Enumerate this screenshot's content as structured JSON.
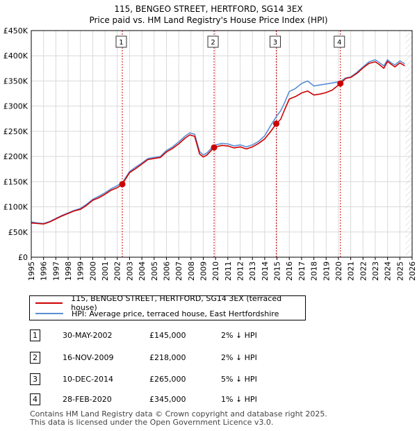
{
  "chart_data": {
    "type": "line",
    "title": "115, BENGEO STREET, HERTFORD, SG14 3EX",
    "subtitle": "Price paid vs. HM Land Registry's House Price Index (HPI)",
    "xlim": [
      1995,
      2026
    ],
    "ylim": [
      0,
      450000
    ],
    "x_tick_labels": [
      "1995",
      "1996",
      "1997",
      "1998",
      "1999",
      "2000",
      "2001",
      "2002",
      "2003",
      "2004",
      "2005",
      "2006",
      "2007",
      "2008",
      "2009",
      "2010",
      "2011",
      "2012",
      "2013",
      "2014",
      "2015",
      "2016",
      "2017",
      "2018",
      "2019",
      "2020",
      "2021",
      "2022",
      "2023",
      "2024",
      "2025",
      "2026"
    ],
    "y_ticks": [
      0,
      50000,
      100000,
      150000,
      200000,
      250000,
      300000,
      350000,
      400000,
      450000
    ],
    "y_tick_labels": [
      "£0",
      "£50K",
      "£100K",
      "£150K",
      "£200K",
      "£250K",
      "£300K",
      "£350K",
      "£400K",
      "£450K"
    ],
    "grid": true,
    "series": [
      {
        "name": "115, BENGEO STREET, HERTFORD, SG14 3EX (terraced house)",
        "color": "#cc0000",
        "x": [
          1995.0,
          1995.5,
          1996.0,
          1996.5,
          1997.0,
          1997.5,
          1998.0,
          1998.5,
          1999.0,
          1999.5,
          2000.0,
          2000.5,
          2001.0,
          2001.5,
          2002.0,
          2002.41,
          2003.0,
          2003.5,
          2004.0,
          2004.5,
          2005.0,
          2005.5,
          2006.0,
          2006.5,
          2007.0,
          2007.5,
          2007.9,
          2008.3,
          2008.7,
          2009.0,
          2009.3,
          2009.88,
          2010.5,
          2011.0,
          2011.5,
          2012.0,
          2012.5,
          2013.0,
          2013.5,
          2014.0,
          2014.5,
          2014.94,
          2015.3,
          2015.6,
          2016.0,
          2016.5,
          2017.0,
          2017.5,
          2018.0,
          2018.5,
          2019.0,
          2019.5,
          2020.16,
          2020.6,
          2021.0,
          2021.5,
          2022.0,
          2022.5,
          2023.0,
          2023.3,
          2023.7,
          2024.0,
          2024.3,
          2024.6,
          2025.0,
          2025.4
        ],
        "values": [
          68000,
          67000,
          66000,
          70000,
          76000,
          82000,
          87000,
          92000,
          95000,
          103000,
          113000,
          118000,
          125000,
          133000,
          138000,
          145000,
          168000,
          176000,
          185000,
          194000,
          196000,
          198000,
          209000,
          216000,
          225000,
          236000,
          243000,
          240000,
          205000,
          199000,
          203000,
          218000,
          222000,
          221000,
          217000,
          219000,
          215000,
          219000,
          226000,
          235000,
          250000,
          265000,
          274000,
          292000,
          314000,
          319000,
          326000,
          330000,
          322000,
          324000,
          327000,
          332000,
          345000,
          355000,
          357000,
          365000,
          376000,
          385000,
          388000,
          383000,
          375000,
          389000,
          383000,
          378000,
          386000,
          380000
        ]
      },
      {
        "name": "HPI: Average price, terraced house, East Hertfordshire",
        "color": "#5a8ed6",
        "x": [
          1995.0,
          1995.5,
          1996.0,
          1996.5,
          1997.0,
          1997.5,
          1998.0,
          1998.5,
          1999.0,
          1999.5,
          2000.0,
          2000.5,
          2001.0,
          2001.5,
          2002.0,
          2002.41,
          2003.0,
          2003.5,
          2004.0,
          2004.5,
          2005.0,
          2005.5,
          2006.0,
          2006.5,
          2007.0,
          2007.5,
          2007.9,
          2008.3,
          2008.7,
          2009.0,
          2009.3,
          2009.88,
          2010.5,
          2011.0,
          2011.5,
          2012.0,
          2012.5,
          2013.0,
          2013.5,
          2014.0,
          2014.5,
          2014.94,
          2015.3,
          2015.6,
          2016.0,
          2016.5,
          2017.0,
          2017.5,
          2018.0,
          2018.5,
          2019.0,
          2019.5,
          2020.16,
          2020.6,
          2021.0,
          2021.5,
          2022.0,
          2022.5,
          2023.0,
          2023.3,
          2023.7,
          2024.0,
          2024.3,
          2024.6,
          2025.0,
          2025.4
        ],
        "values": [
          70000,
          68000,
          67000,
          71000,
          77000,
          83000,
          88000,
          93000,
          97000,
          105000,
          115000,
          121000,
          128000,
          136000,
          142000,
          148000,
          170000,
          179000,
          187000,
          196000,
          198000,
          200000,
          212000,
          219000,
          229000,
          240000,
          247000,
          244000,
          210000,
          203000,
          207000,
          222000,
          226000,
          225000,
          221000,
          223000,
          219000,
          223000,
          230000,
          241000,
          262000,
          279000,
          291000,
          306000,
          329000,
          335000,
          345000,
          350000,
          340000,
          342000,
          344000,
          346000,
          349000,
          356000,
          358000,
          367000,
          378000,
          388000,
          392000,
          387000,
          380000,
          392000,
          386000,
          382000,
          390000,
          384000
        ]
      }
    ],
    "sales": [
      {
        "label": "1",
        "x": 2002.41,
        "price": 145000
      },
      {
        "label": "2",
        "x": 2009.88,
        "price": 218000
      },
      {
        "label": "3",
        "x": 2014.94,
        "price": 265000
      },
      {
        "label": "4",
        "x": 2020.16,
        "price": 345000
      }
    ]
  },
  "transactions": [
    {
      "num": "1",
      "date": "30-MAY-2002",
      "price": "£145,000",
      "hpi": "2% ↓ HPI"
    },
    {
      "num": "2",
      "date": "16-NOV-2009",
      "price": "£218,000",
      "hpi": "2% ↓ HPI"
    },
    {
      "num": "3",
      "date": "10-DEC-2014",
      "price": "£265,000",
      "hpi": "5% ↓ HPI"
    },
    {
      "num": "4",
      "date": "28-FEB-2020",
      "price": "£345,000",
      "hpi": "1% ↓ HPI"
    }
  ],
  "footer": {
    "line1": "Contains HM Land Registry data © Crown copyright and database right 2025.",
    "line2": "This data is licensed under the Open Government Licence v3.0."
  }
}
